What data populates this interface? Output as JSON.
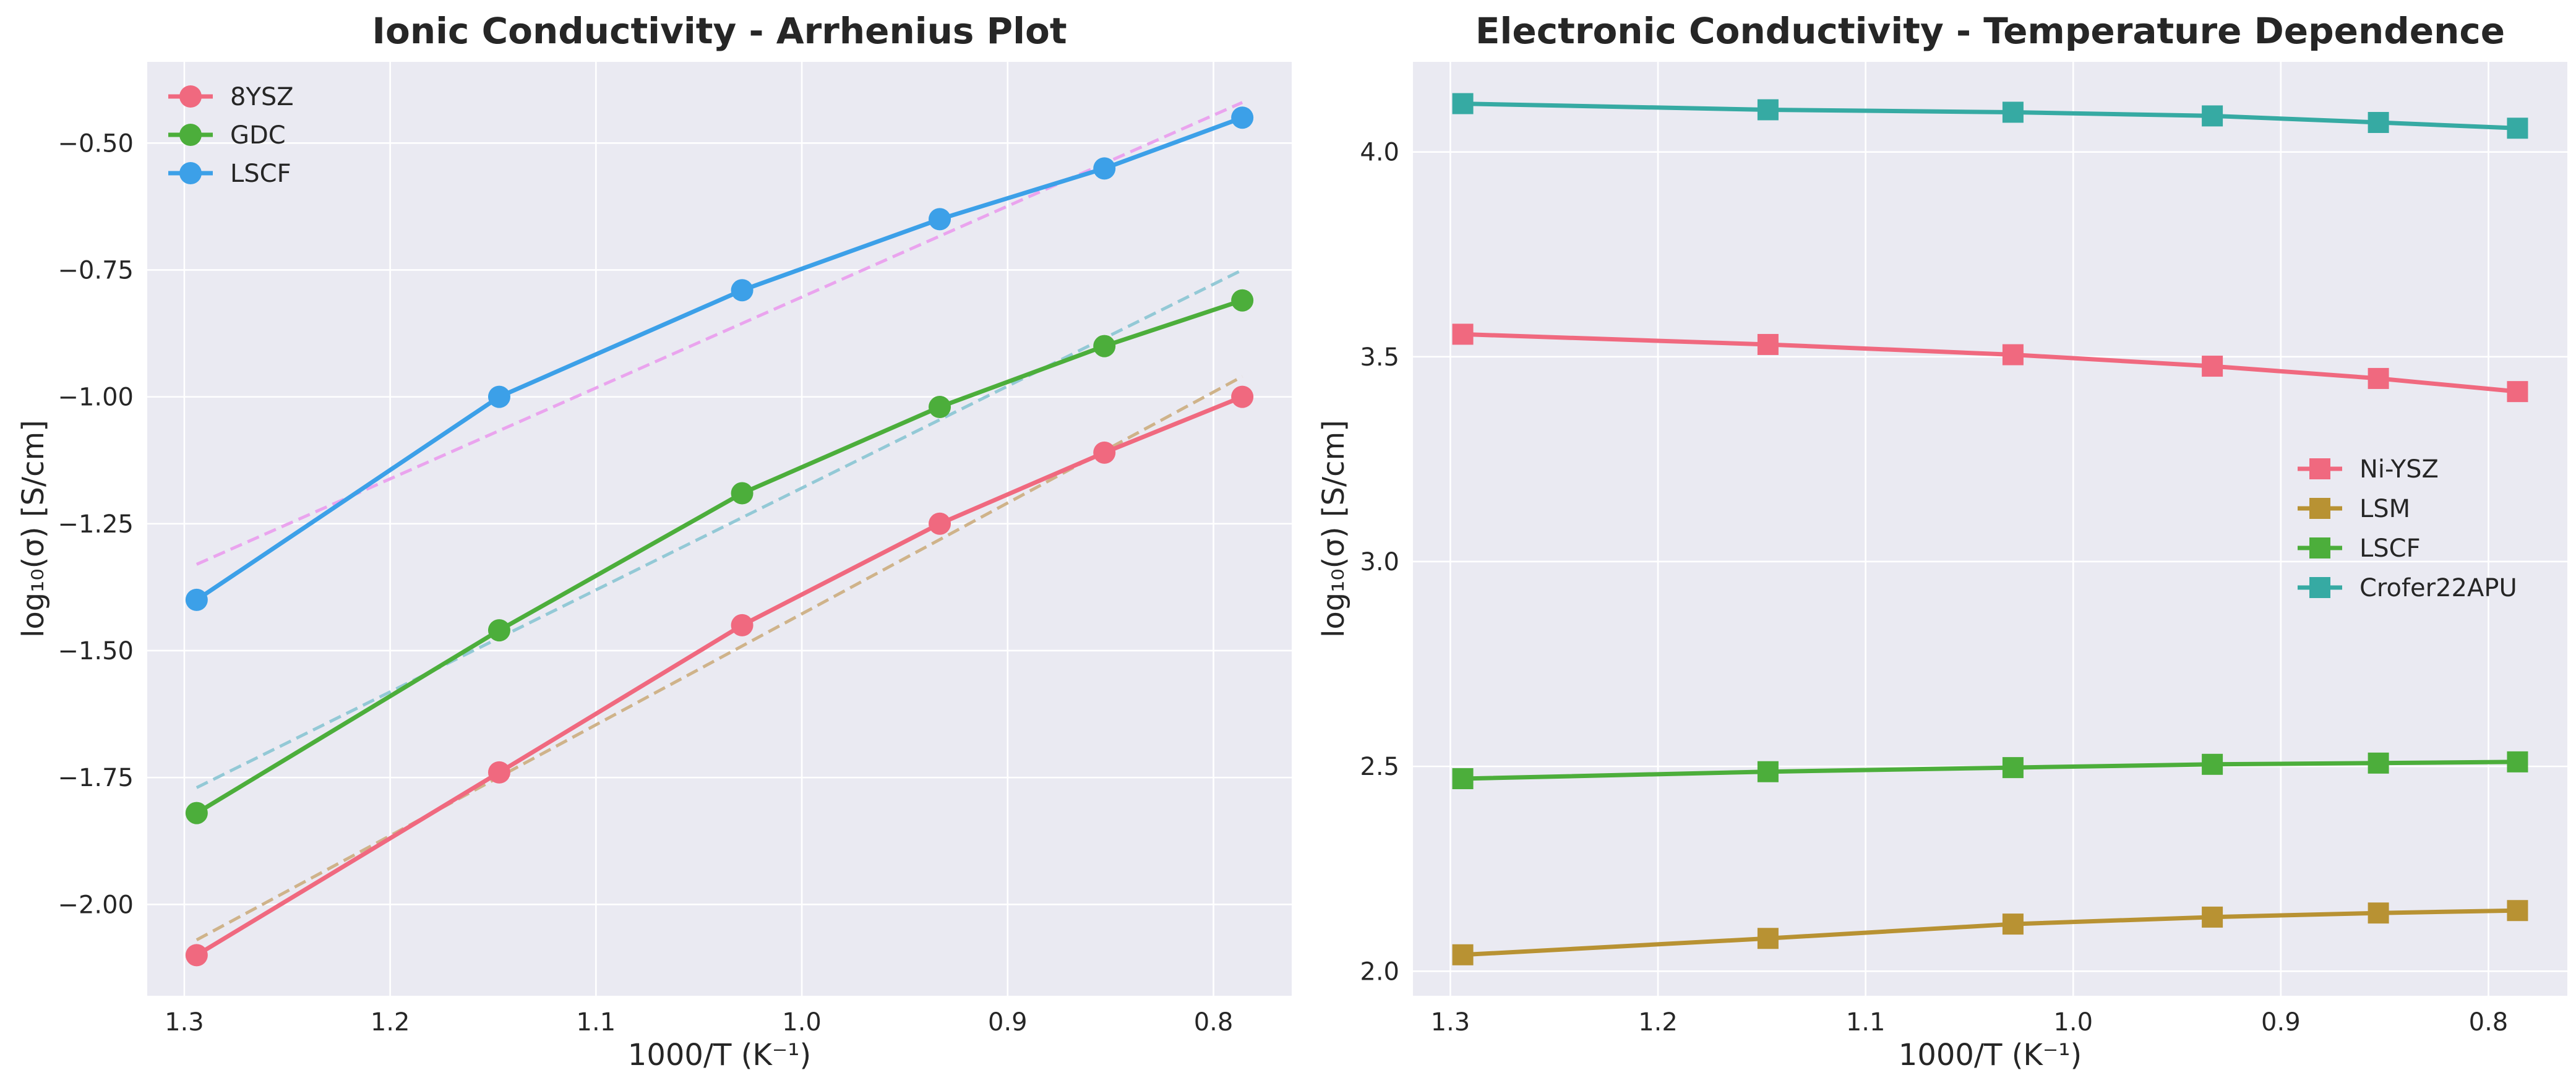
{
  "chart_data": [
    {
      "type": "line",
      "title": "Ionic Conductivity - Arrhenius Plot",
      "xlabel": "1000/T (K⁻¹)",
      "ylabel": "log₁₀(σ) [S/cm]",
      "x_reversed": true,
      "xlim": [
        1.318,
        0.762
      ],
      "ylim": [
        -2.18,
        -0.34
      ],
      "xticks": [
        1.3,
        1.2,
        1.1,
        1.0,
        0.9,
        0.8
      ],
      "xtick_labels": [
        "1.3",
        "1.2",
        "1.1",
        "1.0",
        "0.9",
        "0.8"
      ],
      "yticks": [
        -2.0,
        -1.75,
        -1.5,
        -1.25,
        -1.0,
        -0.75,
        -0.5
      ],
      "ytick_labels": [
        "−2.00",
        "−1.75",
        "−1.50",
        "−1.25",
        "−1.00",
        "−0.75",
        "−0.50"
      ],
      "grid": true,
      "legend_position": "top-left",
      "x": [
        1.294,
        1.147,
        1.029,
        0.933,
        0.853,
        0.786
      ],
      "series": [
        {
          "name": "8YSZ",
          "values": [
            -2.1,
            -1.74,
            -1.45,
            -1.25,
            -1.11,
            -1.0
          ],
          "color": "#f0697f",
          "marker": "circle"
        },
        {
          "name": "GDC",
          "values": [
            -1.82,
            -1.46,
            -1.19,
            -1.02,
            -0.9,
            -0.81
          ],
          "color": "#4cae3b",
          "marker": "circle"
        },
        {
          "name": "LSCF",
          "values": [
            -1.4,
            -1.0,
            -0.79,
            -0.65,
            -0.55,
            -0.45
          ],
          "color": "#3ca0e8",
          "marker": "circle"
        }
      ],
      "fit_lines": [
        {
          "x": [
            1.294,
            0.786
          ],
          "y": [
            -2.07,
            -0.96
          ],
          "color": "#cfb38a"
        },
        {
          "x": [
            1.294,
            0.786
          ],
          "y": [
            -1.77,
            -0.75
          ],
          "color": "#93c9d6"
        },
        {
          "x": [
            1.294,
            0.786
          ],
          "y": [
            -1.33,
            -0.42
          ],
          "color": "#eaa4ee"
        }
      ]
    },
    {
      "type": "line",
      "title": "Electronic Conductivity - Temperature Dependence",
      "xlabel": "1000/T (K⁻¹)",
      "ylabel": "log₁₀(σ) [S/cm]",
      "x_reversed": true,
      "xlim": [
        1.318,
        0.762
      ],
      "ylim": [
        1.94,
        4.22
      ],
      "xticks": [
        1.3,
        1.2,
        1.1,
        1.0,
        0.9,
        0.8
      ],
      "xtick_labels": [
        "1.3",
        "1.2",
        "1.1",
        "1.0",
        "0.9",
        "0.8"
      ],
      "yticks": [
        2.0,
        2.5,
        3.0,
        3.5,
        4.0
      ],
      "ytick_labels": [
        "2.0",
        "2.5",
        "3.0",
        "3.5",
        "4.0"
      ],
      "grid": true,
      "legend_position": "center-right",
      "x": [
        1.294,
        1.147,
        1.029,
        0.933,
        0.853,
        0.786
      ],
      "series": [
        {
          "name": "Ni-YSZ",
          "values": [
            3.555,
            3.53,
            3.505,
            3.477,
            3.447,
            3.415
          ],
          "color": "#f0697f",
          "marker": "square"
        },
        {
          "name": "LSM",
          "values": [
            2.04,
            2.08,
            2.115,
            2.132,
            2.142,
            2.148
          ],
          "color": "#b89233",
          "marker": "square"
        },
        {
          "name": "LSCF",
          "values": [
            2.47,
            2.487,
            2.497,
            2.505,
            2.508,
            2.511
          ],
          "color": "#4cae3b",
          "marker": "square"
        },
        {
          "name": "Crofer22APU",
          "values": [
            4.118,
            4.103,
            4.097,
            4.088,
            4.072,
            4.058
          ],
          "color": "#36aaa3",
          "marker": "square"
        }
      ]
    }
  ]
}
